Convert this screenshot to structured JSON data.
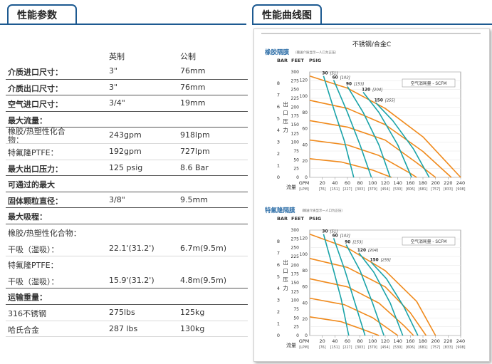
{
  "left_tab": {
    "title": "性能参数"
  },
  "right_tab": {
    "title": "性能曲线图"
  },
  "specs": {
    "headers": {
      "imperial": "英制",
      "metric": "公制"
    },
    "rows": [
      {
        "label": "介质进口尺寸：",
        "imperial": "3\"",
        "metric": "76mm",
        "style": "bold"
      },
      {
        "label": "介质出口尺寸：",
        "imperial": "3\"",
        "metric": "76mm",
        "style": "bold"
      },
      {
        "label": "空气进口尺寸：",
        "imperial": "3/4\"",
        "metric": "19mm",
        "style": "bold"
      },
      {
        "label": "最大流量：",
        "imperial": "",
        "metric": "",
        "style": "bold-nb"
      },
      {
        "label": "橡胶/热塑性化合物：",
        "imperial": "243gpm",
        "metric": "918lpm",
        "style": "wrap"
      },
      {
        "label": "特氟隆PTFE：",
        "imperial": "192gpm",
        "metric": "727lpm",
        "style": "normal"
      },
      {
        "label": "最大出口压力：",
        "imperial": "125 psig",
        "metric": "8.6 Bar",
        "style": "bold"
      },
      {
        "label": "可通过的最大",
        "imperial": "",
        "metric": "",
        "style": "bold-nb"
      },
      {
        "label": "固体颗粒直径：",
        "imperial": "3/8\"",
        "metric": "9.5mm",
        "style": "bold"
      },
      {
        "label": "最大吸程：",
        "imperial": "",
        "metric": "",
        "style": "bold-nb"
      },
      {
        "label": "橡胶/热塑性化合物：",
        "imperial": "",
        "metric": "",
        "style": "thin"
      },
      {
        "label": "干吸（湿吸）：",
        "imperial": "22.1'(31.2')",
        "metric": "6.7m(9.5m)",
        "style": "normal"
      },
      {
        "label": "特氟隆PTFE：",
        "imperial": "",
        "metric": "",
        "style": "thin"
      },
      {
        "label": "干吸（湿吸）：",
        "imperial": "15.9'(31.2')",
        "metric": "4.8m(9.5m)",
        "style": "bold-line"
      },
      {
        "label": "运输重量：",
        "imperial": "",
        "metric": "",
        "style": "bold-nb"
      },
      {
        "label": "316不锈钢",
        "imperial": "275lbs",
        "metric": "125kg",
        "style": "normal"
      },
      {
        "label": "哈氏合金",
        "imperial": "287 lbs",
        "metric": "130kg",
        "style": "normal"
      }
    ]
  },
  "colors": {
    "accent": "#1d5a91",
    "orange": "#f08a1c",
    "teal": "#1aa3a8",
    "section": "#2f6fa8"
  },
  "chart_data": [
    {
      "type": "line",
      "title": "不锈钢/合金C",
      "section_label": "橡胶隔膜",
      "note": "（输送介质显示一人口为正压）",
      "air_label": "空气消耗量 - SCFM",
      "y_left_label": "BAR",
      "y_mid_label": "FEET",
      "y_right_label": "PSIG",
      "y_axis_title": "出口压力",
      "x_label": "流量",
      "x_ticks_gpm": [
        "GPM",
        "20",
        "40",
        "60",
        "80",
        "100",
        "120",
        "140",
        "160",
        "180",
        "200",
        "220",
        "240"
      ],
      "x_ticks_lpm": [
        "[LPM]",
        "[76]",
        "[151]",
        "[227]",
        "[303]",
        "[379]",
        "[454]",
        "[530]",
        "[606]",
        "[681]",
        "[757]",
        "[833]",
        "[908]"
      ],
      "bar_ticks": [
        "8",
        "7",
        "6",
        "5",
        "4",
        "3",
        "2",
        "1",
        "0"
      ],
      "feet_ticks": [
        "300",
        "275",
        "250",
        "225",
        "200",
        "175",
        "150",
        "125",
        "100",
        "75",
        "50",
        "25",
        "0"
      ],
      "psig_ticks": [
        "120",
        "100",
        "80",
        "60",
        "40",
        "20",
        "0"
      ],
      "xlim": [
        0,
        240
      ],
      "ylim": [
        0,
        130
      ],
      "air_curves": [
        {
          "label": "30",
          "label_lpm": "[51]",
          "points": [
            [
              22,
              125
            ],
            [
              40,
              80
            ],
            [
              55,
              45
            ],
            [
              70,
              0
            ]
          ]
        },
        {
          "label": "60",
          "label_lpm": "[102]",
          "points": [
            [
              38,
              120
            ],
            [
              60,
              80
            ],
            [
              80,
              40
            ],
            [
              98,
              0
            ]
          ]
        },
        {
          "label": "90",
          "label_lpm": "[153]",
          "points": [
            [
              60,
              112
            ],
            [
              85,
              80
            ],
            [
              110,
              40
            ],
            [
              128,
              0
            ]
          ]
        },
        {
          "label": "120",
          "label_lpm": "[204]",
          "points": [
            [
              85,
              105
            ],
            [
              110,
              80
            ],
            [
              140,
              40
            ],
            [
              162,
              0
            ]
          ]
        },
        {
          "label": "150",
          "label_lpm": "[255]",
          "points": [
            [
              105,
              92
            ],
            [
              132,
              70
            ],
            [
              165,
              35
            ],
            [
              190,
              0
            ]
          ]
        }
      ],
      "head_curves": [
        {
          "points": [
            [
              0,
              125
            ],
            [
              60,
              110
            ],
            [
              120,
              85
            ],
            [
              180,
              50
            ],
            [
              240,
              0
            ]
          ]
        },
        {
          "points": [
            [
              0,
              95
            ],
            [
              60,
              85
            ],
            [
              120,
              65
            ],
            [
              180,
              32
            ],
            [
              225,
              0
            ]
          ]
        },
        {
          "points": [
            [
              0,
              70
            ],
            [
              60,
              62
            ],
            [
              120,
              46
            ],
            [
              170,
              18
            ],
            [
              200,
              0
            ]
          ]
        },
        {
          "points": [
            [
              0,
              46
            ],
            [
              60,
              40
            ],
            [
              110,
              27
            ],
            [
              160,
              5
            ],
            [
              170,
              0
            ]
          ]
        },
        {
          "points": [
            [
              0,
              23
            ],
            [
              50,
              19
            ],
            [
              100,
              9
            ],
            [
              130,
              0
            ]
          ]
        }
      ]
    },
    {
      "type": "line",
      "section_label": "特氟隆隔膜",
      "note": "（输送介质显示一人口为正压）",
      "air_label": "空气消耗量 - SCFM",
      "y_left_label": "BAR",
      "y_mid_label": "FEET",
      "y_right_label": "PSIG",
      "y_axis_title": "出口压力",
      "x_label": "流量",
      "x_ticks_gpm": [
        "GPM",
        "20",
        "40",
        "60",
        "80",
        "100",
        "120",
        "140",
        "160",
        "180",
        "200",
        "220",
        "240"
      ],
      "x_ticks_lpm": [
        "[LPM]",
        "[76]",
        "[151]",
        "[227]",
        "[303]",
        "[379]",
        "[454]",
        "[530]",
        "[606]",
        "[681]",
        "[757]",
        "[833]",
        "[908]"
      ],
      "bar_ticks": [
        "8",
        "7",
        "6",
        "5",
        "4",
        "3",
        "2",
        "1",
        "0"
      ],
      "feet_ticks": [
        "300",
        "275",
        "250",
        "225",
        "200",
        "175",
        "150",
        "125",
        "100",
        "75",
        "50",
        "25",
        "0"
      ],
      "psig_ticks": [
        "120",
        "100",
        "80",
        "60",
        "40",
        "20",
        "0"
      ],
      "xlim": [
        0,
        240
      ],
      "ylim": [
        0,
        130
      ],
      "air_curves": [
        {
          "label": "30",
          "label_lpm": "[51]",
          "points": [
            [
              22,
              125
            ],
            [
              38,
              80
            ],
            [
              50,
              45
            ],
            [
              62,
              0
            ]
          ]
        },
        {
          "label": "60",
          "label_lpm": "[102]",
          "points": [
            [
              38,
              120
            ],
            [
              56,
              80
            ],
            [
              72,
              40
            ],
            [
              88,
              0
            ]
          ]
        },
        {
          "label": "90",
          "label_lpm": "[153]",
          "points": [
            [
              58,
              112
            ],
            [
              80,
              80
            ],
            [
              100,
              40
            ],
            [
              118,
              0
            ]
          ]
        },
        {
          "label": "120",
          "label_lpm": "[204]",
          "points": [
            [
              78,
              102
            ],
            [
              102,
              78
            ],
            [
              128,
              40
            ],
            [
              148,
              0
            ]
          ]
        },
        {
          "label": "150",
          "label_lpm": "[255]",
          "points": [
            [
              98,
              90
            ],
            [
              122,
              70
            ],
            [
              150,
              35
            ],
            [
              172,
              0
            ]
          ]
        }
      ],
      "head_curves": [
        {
          "points": [
            [
              0,
              125
            ],
            [
              60,
              108
            ],
            [
              120,
              80
            ],
            [
              170,
              42
            ],
            [
              200,
              0
            ]
          ]
        },
        {
          "points": [
            [
              0,
              95
            ],
            [
              60,
              84
            ],
            [
              120,
              60
            ],
            [
              160,
              28
            ],
            [
              185,
              0
            ]
          ]
        },
        {
          "points": [
            [
              0,
              70
            ],
            [
              60,
              60
            ],
            [
              110,
              40
            ],
            [
              150,
              12
            ],
            [
              165,
              0
            ]
          ]
        },
        {
          "points": [
            [
              0,
              46
            ],
            [
              55,
              38
            ],
            [
              100,
              22
            ],
            [
              140,
              0
            ]
          ]
        },
        {
          "points": [
            [
              0,
              23
            ],
            [
              50,
              17
            ],
            [
              90,
              6
            ],
            [
              110,
              0
            ]
          ]
        }
      ]
    }
  ]
}
